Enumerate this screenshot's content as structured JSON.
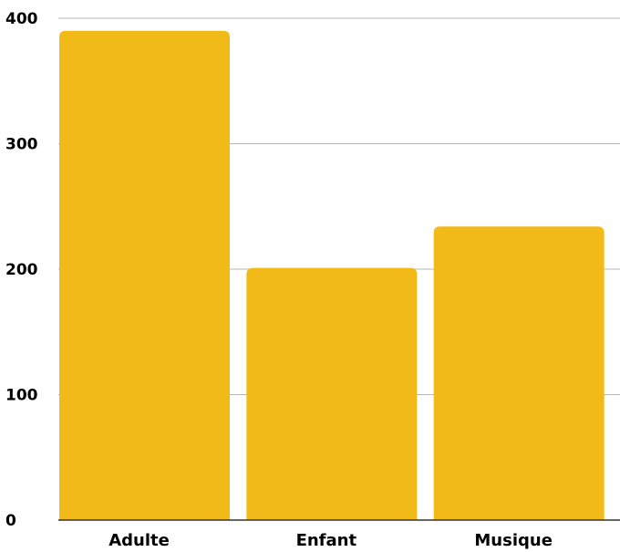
{
  "chart_data": {
    "type": "bar",
    "categories": [
      "Adulte",
      "Enfant",
      "Musique"
    ],
    "values": [
      390,
      201,
      234
    ],
    "yticks": [
      0,
      100,
      200,
      300,
      400
    ],
    "ylim": [
      0,
      400
    ],
    "grid": true,
    "title": "",
    "xlabel": "",
    "ylabel": "",
    "colors": {
      "bar": "#F1BA19",
      "grid": "#B7B7B7"
    }
  }
}
